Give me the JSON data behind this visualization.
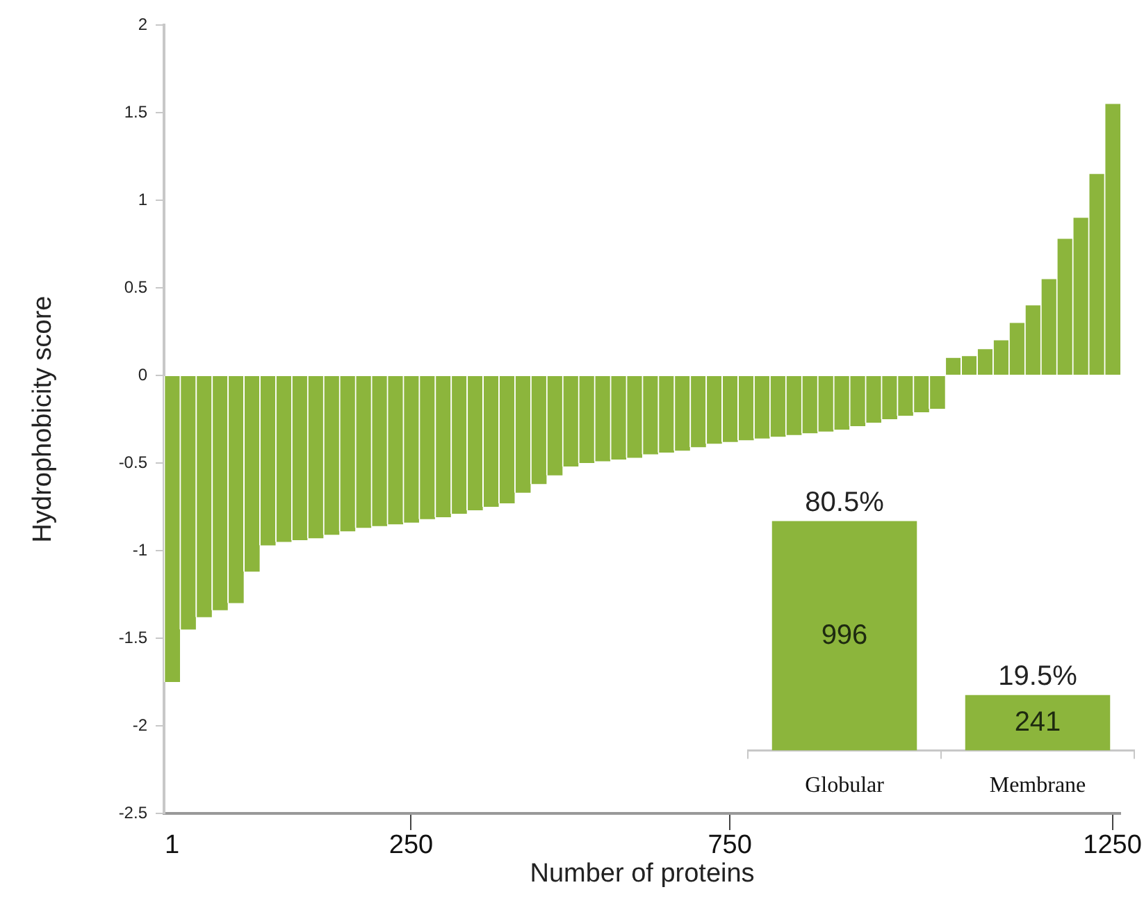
{
  "chart_data": [
    {
      "type": "bar",
      "xlabel": "Number of proteins",
      "ylabel": "Hydrophobicity score",
      "categories": [
        "1",
        null,
        null,
        null,
        null,
        null,
        null,
        null,
        null,
        null,
        null,
        null,
        null,
        null,
        null,
        "250",
        null,
        null,
        null,
        null,
        null,
        null,
        null,
        null,
        null,
        null,
        null,
        null,
        null,
        null,
        null,
        null,
        null,
        null,
        null,
        "750",
        null,
        null,
        null,
        null,
        null,
        null,
        null,
        null,
        null,
        null,
        null,
        null,
        null,
        null,
        null,
        null,
        null,
        null,
        null,
        null,
        null,
        null,
        null,
        "1250"
      ],
      "values": [
        -1.75,
        -1.45,
        -1.38,
        -1.34,
        -1.3,
        -1.12,
        -0.97,
        -0.95,
        -0.94,
        -0.93,
        -0.91,
        -0.89,
        -0.87,
        -0.86,
        -0.85,
        -0.84,
        -0.82,
        -0.81,
        -0.79,
        -0.77,
        -0.75,
        -0.73,
        -0.67,
        -0.62,
        -0.57,
        -0.52,
        -0.5,
        -0.49,
        -0.48,
        -0.47,
        -0.45,
        -0.44,
        -0.43,
        -0.41,
        -0.39,
        -0.38,
        -0.37,
        -0.36,
        -0.35,
        -0.34,
        -0.33,
        -0.32,
        -0.31,
        -0.29,
        -0.27,
        -0.25,
        -0.23,
        -0.21,
        -0.19,
        0.1,
        0.11,
        0.15,
        0.2,
        0.3,
        0.4,
        0.55,
        0.78,
        0.9,
        1.15,
        1.55
      ],
      "color": "#8cb53c",
      "ylim": [
        -2.5,
        2
      ],
      "yticks": [
        -2.5,
        -2,
        -1.5,
        -1,
        -0.5,
        0,
        0.5,
        1,
        1.5,
        2
      ],
      "grid": false,
      "legend": false
    },
    {
      "type": "bar",
      "categories": [
        "Globular",
        "Membrane"
      ],
      "values": [
        996,
        241
      ],
      "value_labels": [
        "996",
        "241"
      ],
      "color": "#8cb53c",
      "annotations": [
        {
          "text": "80.5%",
          "x": "Globular",
          "y": 996
        },
        {
          "text": "19.5%",
          "x": "Membrane",
          "y": 241
        }
      ],
      "legend": false
    }
  ]
}
